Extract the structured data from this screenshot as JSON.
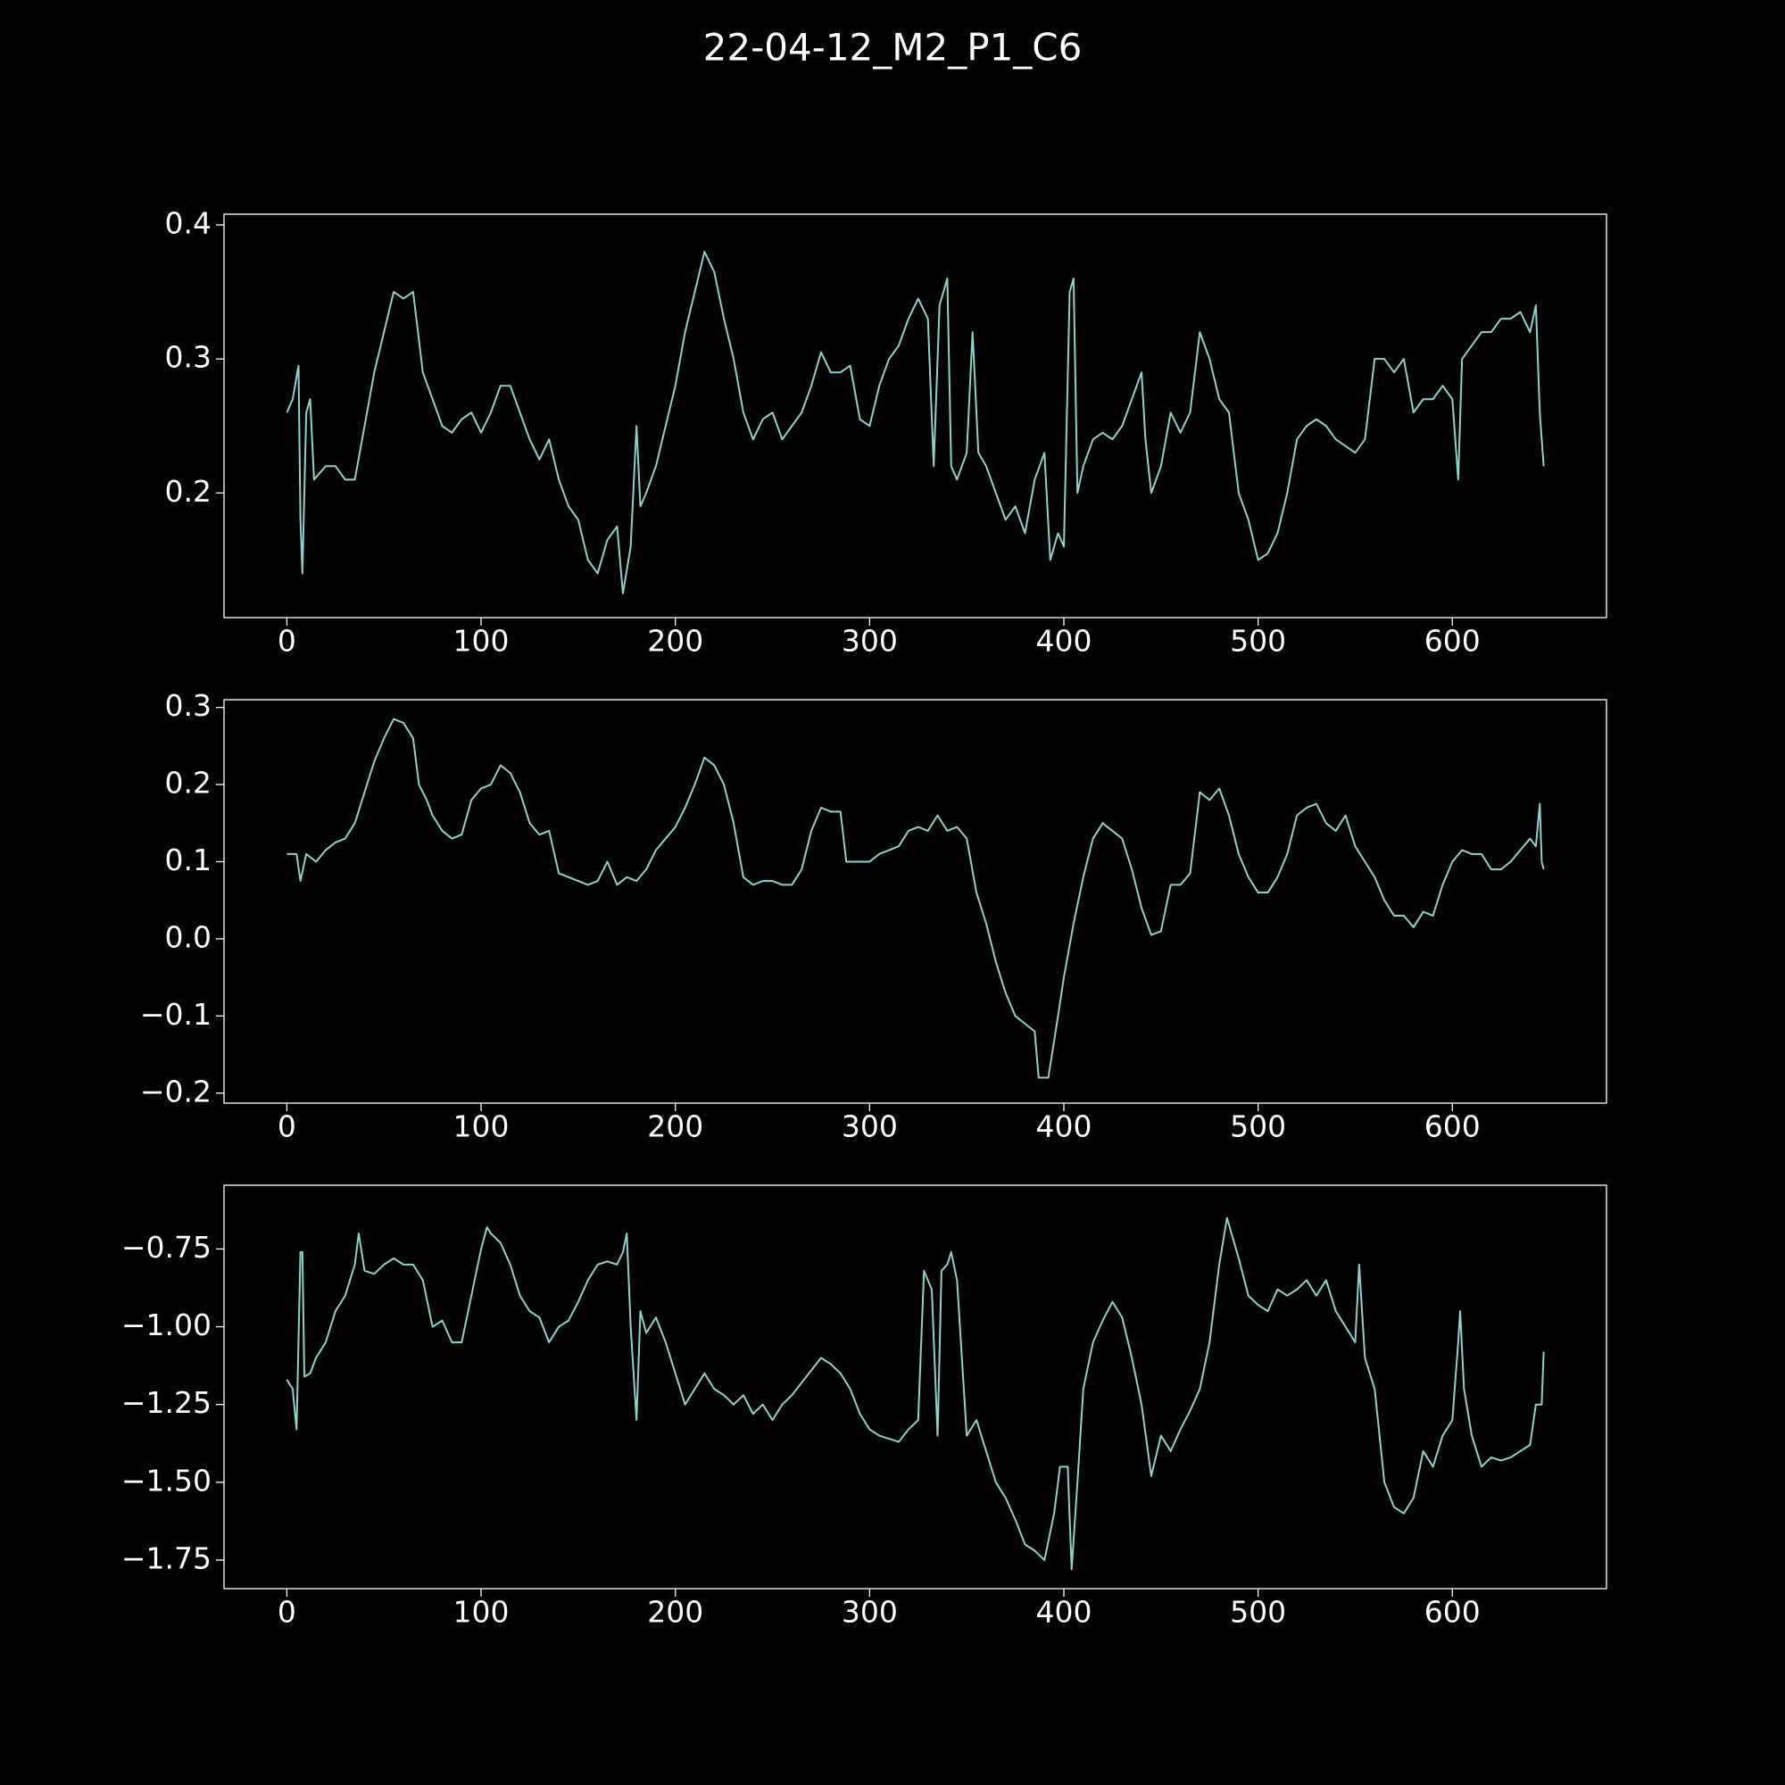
{
  "title": "22-04-12_M2_P1_C6",
  "chart_data": [
    {
      "type": "line",
      "color": "#8dd3c7",
      "xlim": [
        -32.35,
        679.35
      ],
      "xticks": [
        0,
        100,
        200,
        300,
        400,
        500,
        600
      ],
      "ylim": [
        0.107,
        0.408
      ],
      "yticks": [
        0.2,
        0.3,
        0.4
      ],
      "x": [
        0,
        3,
        6,
        7,
        8,
        10,
        12,
        14,
        20,
        25,
        30,
        35,
        40,
        45,
        50,
        55,
        60,
        65,
        70,
        75,
        80,
        85,
        90,
        95,
        100,
        105,
        110,
        115,
        120,
        125,
        130,
        135,
        140,
        145,
        150,
        155,
        160,
        165,
        170,
        173,
        177,
        180,
        182,
        185,
        190,
        195,
        200,
        205,
        210,
        215,
        220,
        225,
        230,
        235,
        240,
        245,
        250,
        255,
        260,
        265,
        270,
        275,
        280,
        285,
        290,
        295,
        300,
        305,
        310,
        315,
        320,
        325,
        330,
        333,
        336,
        340,
        342,
        345,
        350,
        353,
        356,
        360,
        365,
        370,
        375,
        380,
        385,
        390,
        393,
        397,
        400,
        403,
        405,
        407,
        410,
        415,
        420,
        425,
        430,
        435,
        440,
        442,
        445,
        450,
        455,
        460,
        465,
        470,
        475,
        480,
        485,
        490,
        495,
        500,
        505,
        510,
        515,
        520,
        525,
        530,
        535,
        540,
        545,
        550,
        555,
        560,
        565,
        570,
        575,
        580,
        585,
        590,
        595,
        600,
        603,
        605,
        610,
        615,
        620,
        625,
        630,
        635,
        640,
        643,
        645,
        647
      ],
      "values": [
        0.26,
        0.27,
        0.295,
        0.18,
        0.14,
        0.26,
        0.27,
        0.21,
        0.22,
        0.22,
        0.21,
        0.21,
        0.25,
        0.29,
        0.32,
        0.35,
        0.345,
        0.35,
        0.29,
        0.27,
        0.25,
        0.245,
        0.255,
        0.26,
        0.245,
        0.26,
        0.28,
        0.28,
        0.26,
        0.24,
        0.225,
        0.24,
        0.21,
        0.19,
        0.18,
        0.15,
        0.14,
        0.165,
        0.175,
        0.125,
        0.16,
        0.25,
        0.19,
        0.2,
        0.22,
        0.25,
        0.28,
        0.32,
        0.35,
        0.38,
        0.365,
        0.33,
        0.3,
        0.26,
        0.24,
        0.255,
        0.26,
        0.24,
        0.25,
        0.26,
        0.28,
        0.305,
        0.29,
        0.29,
        0.295,
        0.255,
        0.25,
        0.28,
        0.3,
        0.31,
        0.33,
        0.345,
        0.33,
        0.22,
        0.34,
        0.36,
        0.22,
        0.21,
        0.23,
        0.32,
        0.23,
        0.22,
        0.2,
        0.18,
        0.19,
        0.17,
        0.21,
        0.23,
        0.15,
        0.17,
        0.16,
        0.35,
        0.36,
        0.2,
        0.22,
        0.24,
        0.245,
        0.24,
        0.25,
        0.27,
        0.29,
        0.24,
        0.2,
        0.22,
        0.26,
        0.245,
        0.26,
        0.32,
        0.3,
        0.27,
        0.26,
        0.2,
        0.18,
        0.15,
        0.155,
        0.17,
        0.2,
        0.24,
        0.25,
        0.255,
        0.25,
        0.24,
        0.235,
        0.23,
        0.24,
        0.3,
        0.3,
        0.29,
        0.3,
        0.26,
        0.27,
        0.27,
        0.28,
        0.27,
        0.21,
        0.3,
        0.31,
        0.32,
        0.32,
        0.33,
        0.33,
        0.335,
        0.32,
        0.34,
        0.26,
        0.22
      ]
    },
    {
      "type": "line",
      "color": "#8dd3c7",
      "xlim": [
        -32.35,
        679.35
      ],
      "xticks": [
        0,
        100,
        200,
        300,
        400,
        500,
        600
      ],
      "ylim": [
        -0.213,
        0.31
      ],
      "yticks": [
        {
          "value": -0.2,
          "label": "−0.2"
        },
        {
          "value": -0.1,
          "label": "−0.1"
        },
        {
          "value": 0,
          "label": "0.0"
        },
        0.1,
        0.2,
        0.3
      ],
      "x": [
        0,
        5,
        7,
        10,
        15,
        20,
        25,
        30,
        35,
        40,
        45,
        50,
        55,
        60,
        65,
        68,
        72,
        75,
        80,
        85,
        90,
        95,
        100,
        105,
        110,
        115,
        120,
        125,
        130,
        135,
        140,
        145,
        150,
        155,
        160,
        165,
        170,
        175,
        180,
        185,
        190,
        195,
        200,
        205,
        210,
        215,
        220,
        225,
        230,
        235,
        240,
        245,
        250,
        255,
        260,
        265,
        270,
        275,
        280,
        285,
        288,
        295,
        300,
        305,
        310,
        315,
        320,
        325,
        330,
        335,
        340,
        345,
        350,
        355,
        360,
        365,
        370,
        375,
        380,
        385,
        387,
        392,
        397,
        400,
        405,
        410,
        415,
        420,
        425,
        430,
        435,
        440,
        445,
        450,
        455,
        460,
        465,
        470,
        475,
        480,
        485,
        490,
        495,
        500,
        505,
        510,
        515,
        520,
        525,
        530,
        535,
        540,
        545,
        550,
        555,
        560,
        565,
        570,
        575,
        580,
        585,
        590,
        595,
        600,
        605,
        610,
        615,
        620,
        625,
        630,
        635,
        640,
        643,
        645,
        646,
        647
      ],
      "values": [
        0.11,
        0.11,
        0.075,
        0.11,
        0.1,
        0.115,
        0.125,
        0.13,
        0.15,
        0.19,
        0.23,
        0.26,
        0.285,
        0.28,
        0.26,
        0.2,
        0.18,
        0.16,
        0.14,
        0.13,
        0.135,
        0.18,
        0.195,
        0.2,
        0.225,
        0.215,
        0.19,
        0.15,
        0.135,
        0.14,
        0.085,
        0.08,
        0.075,
        0.07,
        0.075,
        0.1,
        0.07,
        0.08,
        0.075,
        0.09,
        0.115,
        0.13,
        0.145,
        0.17,
        0.2,
        0.235,
        0.225,
        0.2,
        0.15,
        0.08,
        0.07,
        0.075,
        0.075,
        0.07,
        0.07,
        0.09,
        0.14,
        0.17,
        0.165,
        0.165,
        0.1,
        0.1,
        0.1,
        0.11,
        0.115,
        0.12,
        0.14,
        0.145,
        0.14,
        0.16,
        0.14,
        0.145,
        0.13,
        0.06,
        0.02,
        -0.03,
        -0.07,
        -0.1,
        -0.11,
        -0.12,
        -0.18,
        -0.18,
        -0.1,
        -0.05,
        0.02,
        0.08,
        0.13,
        0.15,
        0.14,
        0.13,
        0.09,
        0.04,
        0.005,
        0.01,
        0.07,
        0.07,
        0.085,
        0.19,
        0.18,
        0.195,
        0.16,
        0.11,
        0.08,
        0.06,
        0.06,
        0.08,
        0.11,
        0.16,
        0.17,
        0.175,
        0.15,
        0.14,
        0.16,
        0.12,
        0.1,
        0.08,
        0.05,
        0.03,
        0.03,
        0.015,
        0.035,
        0.03,
        0.07,
        0.1,
        0.115,
        0.11,
        0.11,
        0.09,
        0.09,
        0.1,
        0.115,
        0.13,
        0.12,
        0.175,
        0.1,
        0.09
      ]
    },
    {
      "type": "line",
      "color": "#8dd3c7",
      "xlim": [
        -32.35,
        679.35
      ],
      "xticks": [
        0,
        100,
        200,
        300,
        400,
        500,
        600
      ],
      "ylim": [
        -1.842,
        -0.545
      ],
      "yticks": [
        {
          "value": -1.75,
          "label": "−1.75"
        },
        {
          "value": -1.5,
          "label": "−1.50"
        },
        {
          "value": -1.25,
          "label": "−1.25"
        },
        {
          "value": -1,
          "label": "−1.00"
        },
        {
          "value": -0.75,
          "label": "−0.75"
        }
      ],
      "x": [
        0,
        3,
        5,
        7,
        8,
        9,
        12,
        15,
        20,
        25,
        30,
        35,
        37,
        40,
        45,
        50,
        55,
        60,
        65,
        70,
        75,
        80,
        85,
        90,
        95,
        100,
        103,
        105,
        110,
        115,
        120,
        125,
        130,
        135,
        140,
        145,
        150,
        155,
        160,
        165,
        170,
        173,
        175,
        177,
        180,
        182,
        185,
        190,
        195,
        200,
        205,
        210,
        215,
        220,
        225,
        230,
        235,
        240,
        245,
        250,
        255,
        260,
        265,
        270,
        275,
        280,
        285,
        290,
        295,
        300,
        305,
        310,
        315,
        320,
        325,
        328,
        332,
        335,
        337,
        340,
        342,
        345,
        350,
        355,
        360,
        365,
        370,
        375,
        380,
        385,
        390,
        395,
        398,
        402,
        404,
        407,
        410,
        415,
        420,
        425,
        430,
        435,
        440,
        445,
        450,
        455,
        460,
        465,
        470,
        475,
        480,
        484,
        490,
        495,
        500,
        505,
        510,
        515,
        520,
        525,
        530,
        535,
        540,
        545,
        550,
        552,
        555,
        560,
        565,
        570,
        575,
        580,
        585,
        590,
        595,
        600,
        603,
        604,
        606,
        610,
        615,
        620,
        625,
        630,
        635,
        640,
        643,
        646,
        647
      ],
      "values": [
        -1.17,
        -1.2,
        -1.33,
        -0.76,
        -0.76,
        -1.16,
        -1.15,
        -1.1,
        -1.05,
        -0.95,
        -0.9,
        -0.8,
        -0.7,
        -0.82,
        -0.83,
        -0.8,
        -0.78,
        -0.8,
        -0.8,
        -0.85,
        -1.0,
        -0.98,
        -1.05,
        -1.05,
        -0.9,
        -0.75,
        -0.68,
        -0.7,
        -0.73,
        -0.8,
        -0.9,
        -0.95,
        -0.97,
        -1.05,
        -1.0,
        -0.98,
        -0.92,
        -0.85,
        -0.8,
        -0.79,
        -0.8,
        -0.76,
        -0.7,
        -1.0,
        -1.3,
        -0.95,
        -1.02,
        -0.97,
        -1.05,
        -1.15,
        -1.25,
        -1.2,
        -1.15,
        -1.2,
        -1.22,
        -1.25,
        -1.22,
        -1.28,
        -1.25,
        -1.3,
        -1.25,
        -1.22,
        -1.18,
        -1.14,
        -1.1,
        -1.12,
        -1.15,
        -1.2,
        -1.28,
        -1.33,
        -1.35,
        -1.36,
        -1.37,
        -1.33,
        -1.3,
        -0.82,
        -0.88,
        -1.35,
        -0.82,
        -0.8,
        -0.76,
        -0.85,
        -1.35,
        -1.3,
        -1.4,
        -1.5,
        -1.55,
        -1.62,
        -1.7,
        -1.72,
        -1.75,
        -1.6,
        -1.45,
        -1.45,
        -1.78,
        -1.5,
        -1.2,
        -1.05,
        -0.98,
        -0.92,
        -0.97,
        -1.1,
        -1.25,
        -1.48,
        -1.35,
        -1.4,
        -1.33,
        -1.27,
        -1.2,
        -1.05,
        -0.8,
        -0.65,
        -0.78,
        -0.9,
        -0.93,
        -0.95,
        -0.88,
        -0.9,
        -0.88,
        -0.85,
        -0.9,
        -0.85,
        -0.95,
        -1.0,
        -1.05,
        -0.8,
        -1.1,
        -1.2,
        -1.5,
        -1.58,
        -1.6,
        -1.55,
        -1.4,
        -1.45,
        -1.35,
        -1.3,
        -1.05,
        -0.95,
        -1.2,
        -1.35,
        -1.45,
        -1.42,
        -1.43,
        -1.42,
        -1.4,
        -1.38,
        -1.25,
        -1.25,
        -1.08
      ]
    }
  ]
}
